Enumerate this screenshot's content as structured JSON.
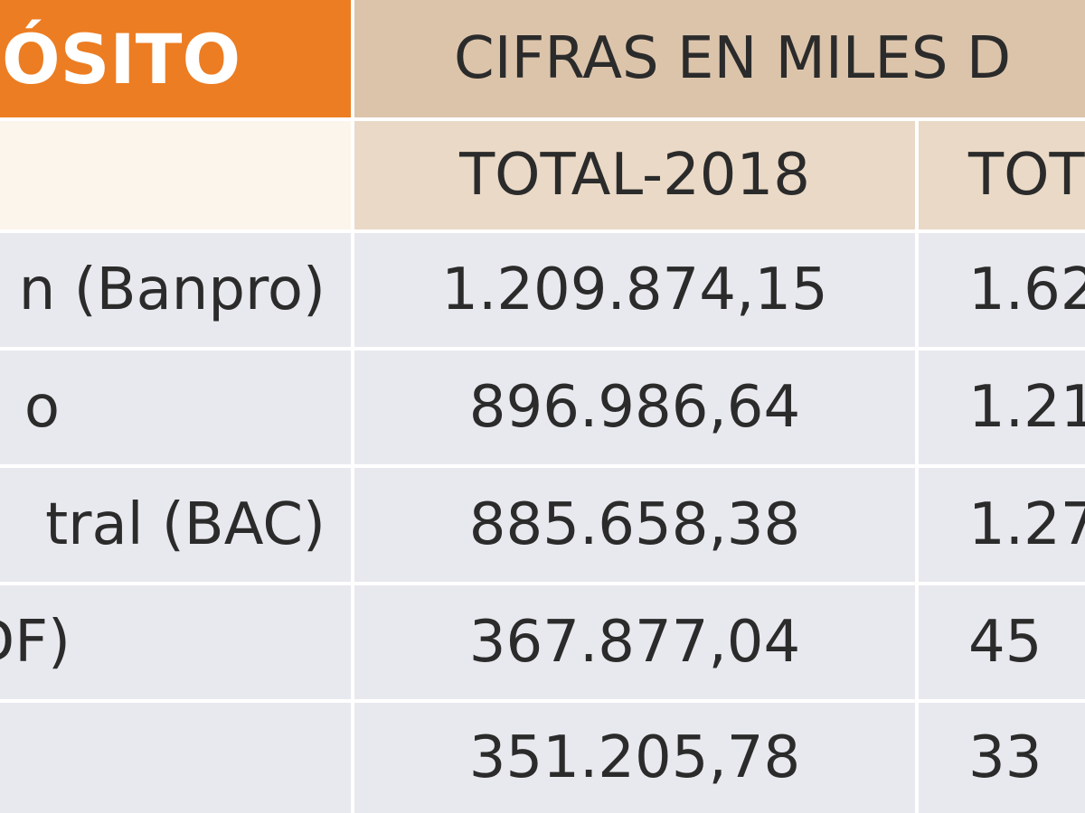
{
  "chart_data": {
    "type": "table",
    "title": "ÓSITO",
    "units_caption": "CIFRAS EN MILES D",
    "columns": [
      "",
      "TOTAL-2018",
      "TOT"
    ],
    "rows": [
      {
        "label": "n (Banpro)",
        "total_2018": "1.209.874,15",
        "total_2019": "1.62"
      },
      {
        "label": "o",
        "total_2018": "896.986,64",
        "total_2019": "1.21"
      },
      {
        "label": "tral (BAC)",
        "total_2018": "885.658,38",
        "total_2019": "1.27"
      },
      {
        "label": "DF)",
        "total_2018": "367.877,04",
        "total_2019": "45"
      },
      {
        "label": "",
        "total_2018": "351.205,78",
        "total_2019": "33"
      }
    ]
  },
  "colors": {
    "title_bg": "#ec7d22",
    "header_bg": "#dcc4ab",
    "row_bg": "#e8e9ee"
  }
}
